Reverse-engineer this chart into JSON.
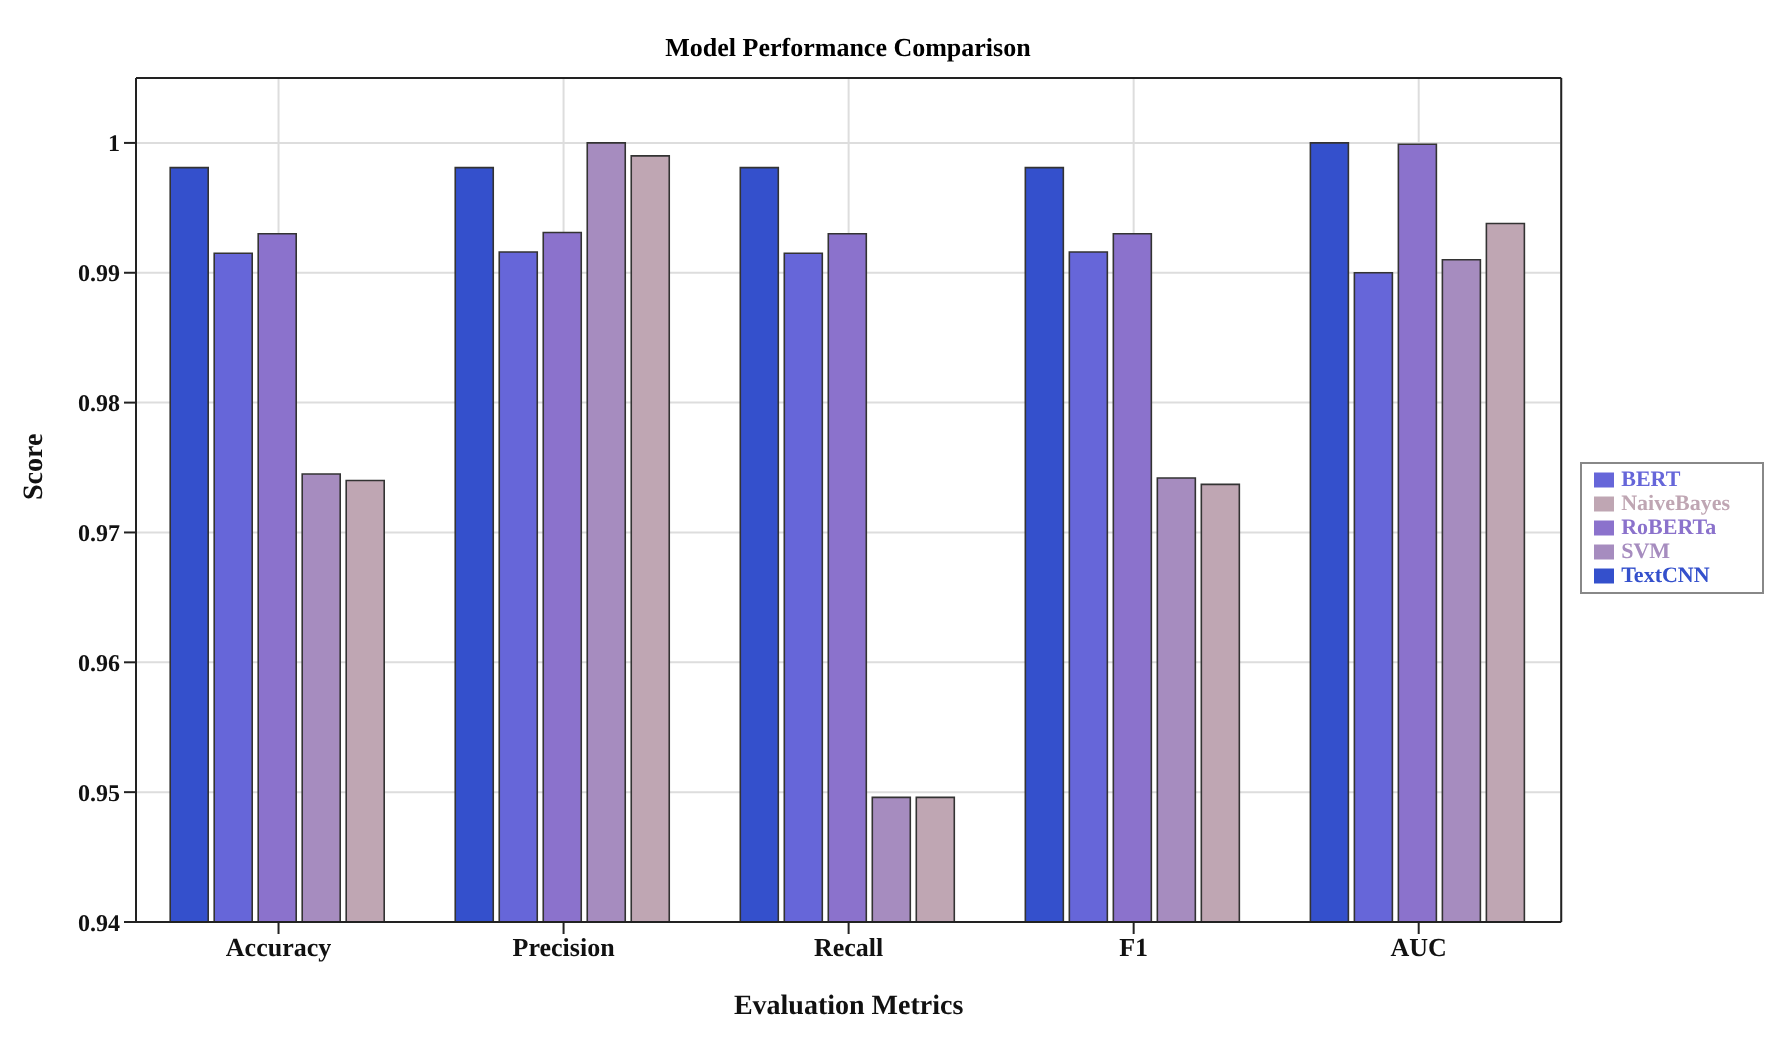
{
  "chart_data": {
    "type": "bar",
    "title": "Model Performance Comparison",
    "xlabel": "Evaluation Metrics",
    "ylabel": "Score",
    "categories": [
      "Accuracy",
      "Precision",
      "Recall",
      "F1",
      "AUC"
    ],
    "series": [
      {
        "name": "TextCNN",
        "color": "#3450cc",
        "values": [
          0.9981,
          0.9981,
          0.9981,
          0.9981,
          1.0
        ]
      },
      {
        "name": "BERT",
        "color": "#6666d9",
        "values": [
          0.9915,
          0.9916,
          0.9915,
          0.9916,
          0.99
        ]
      },
      {
        "name": "RoBERTa",
        "color": "#8b72cc",
        "values": [
          0.993,
          0.9931,
          0.993,
          0.993,
          0.9999
        ]
      },
      {
        "name": "SVM",
        "color": "#a68cbf",
        "values": [
          0.9745,
          1.0,
          0.9496,
          0.9742,
          0.991
        ]
      },
      {
        "name": "NaiveBayes",
        "color": "#bfa6b3",
        "values": [
          0.974,
          0.999,
          0.9496,
          0.9737,
          0.9938
        ]
      }
    ],
    "ylim": [
      0.94,
      1.005
    ],
    "yticks": [
      0.94,
      0.95,
      0.96,
      0.97,
      0.98,
      0.99,
      1
    ],
    "grid": true,
    "legend": "right"
  }
}
